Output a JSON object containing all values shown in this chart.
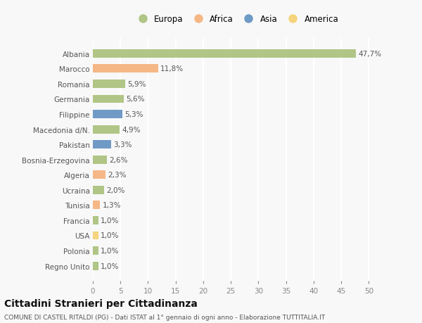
{
  "categories": [
    "Albania",
    "Marocco",
    "Romania",
    "Germania",
    "Filippine",
    "Macedonia d/N.",
    "Pakistan",
    "Bosnia-Erzegovina",
    "Algeria",
    "Ucraina",
    "Tunisia",
    "Francia",
    "USA",
    "Polonia",
    "Regno Unito"
  ],
  "values": [
    47.7,
    11.8,
    5.9,
    5.6,
    5.3,
    4.9,
    3.3,
    2.6,
    2.3,
    2.0,
    1.3,
    1.0,
    1.0,
    1.0,
    1.0
  ],
  "labels": [
    "47,7%",
    "11,8%",
    "5,9%",
    "5,6%",
    "5,3%",
    "4,9%",
    "3,3%",
    "2,6%",
    "2,3%",
    "2,0%",
    "1,3%",
    "1,0%",
    "1,0%",
    "1,0%",
    "1,0%"
  ],
  "continents": [
    "Europa",
    "Africa",
    "Europa",
    "Europa",
    "Asia",
    "Europa",
    "Asia",
    "Europa",
    "Africa",
    "Europa",
    "Africa",
    "Europa",
    "America",
    "Europa",
    "Europa"
  ],
  "continent_colors": {
    "Europa": "#a8c07a",
    "Africa": "#f5b07a",
    "Asia": "#6090c0",
    "America": "#f5d070"
  },
  "legend_entries": [
    "Europa",
    "Africa",
    "Asia",
    "America"
  ],
  "title": "Cittadini Stranieri per Cittadinanza",
  "subtitle": "COMUNE DI CASTEL RITALDI (PG) - Dati ISTAT al 1° gennaio di ogni anno - Elaborazione TUTTITALIA.IT",
  "xlim": [
    0,
    52
  ],
  "xticks": [
    0,
    5,
    10,
    15,
    20,
    25,
    30,
    35,
    40,
    45,
    50
  ],
  "background_color": "#f8f8f8",
  "bar_height": 0.55,
  "grid_color": "#ffffff",
  "label_fontsize": 7.5,
  "tick_fontsize": 7.5,
  "title_fontsize": 10,
  "subtitle_fontsize": 6.5
}
